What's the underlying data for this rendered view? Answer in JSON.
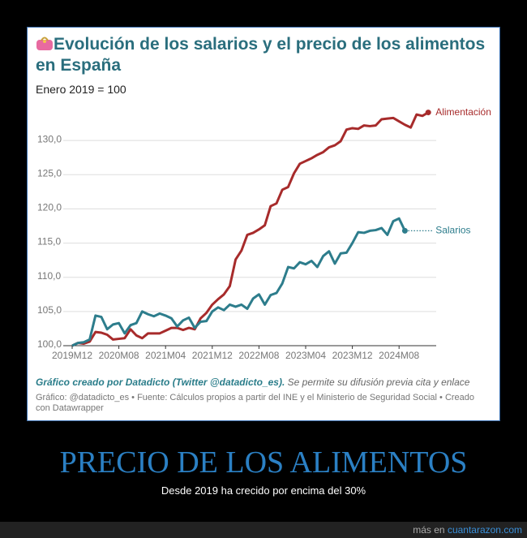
{
  "chart_data": {
    "type": "line",
    "title": "Evolución de los salarios y el precio de los alimentos en España",
    "subtitle": "Enero 2019 = 100",
    "credit_author": "Gráfico creado por Datadicto (Twitter @datadicto_es).",
    "credit_note": "Se permite su difusión previa cita y enlace",
    "source": "Gráfico: @datadicto_es • Fuente: Cálculos propios a partir del INE y el Ministerio de Seguridad Social • Creado con Datawrapper",
    "categories": [
      "2019M12",
      null,
      null,
      null,
      null,
      null,
      null,
      null,
      "2020M08",
      null,
      null,
      null,
      null,
      null,
      null,
      null,
      "2021M04",
      null,
      null,
      null,
      null,
      null,
      null,
      null,
      "2021M12",
      null,
      null,
      null,
      null,
      null,
      null,
      null,
      "2022M08",
      null,
      null,
      null,
      null,
      null,
      null,
      null,
      "2023M04",
      null,
      null,
      null,
      null,
      null,
      null,
      null,
      "2023M12",
      null,
      null,
      null,
      null,
      null,
      null,
      null,
      "2024M08",
      null,
      null,
      null,
      null,
      null
    ],
    "series": [
      {
        "name": "Alimentación",
        "color": "#a72b2b",
        "values": [
          100.0,
          100.4,
          100.3,
          100.6,
          102.0,
          101.9,
          101.6,
          100.9,
          101.0,
          101.1,
          102.4,
          101.5,
          101.1,
          101.8,
          101.8,
          101.8,
          102.2,
          102.6,
          102.6,
          102.3,
          102.6,
          102.4,
          104.0,
          104.8,
          106.0,
          106.8,
          107.5,
          108.7,
          112.6,
          113.9,
          116.2,
          116.5,
          117.0,
          117.6,
          120.4,
          120.8,
          122.8,
          123.2,
          125.2,
          126.6,
          127.0,
          127.4,
          127.9,
          128.3,
          129.0,
          129.3,
          129.9,
          131.6,
          131.8,
          131.7,
          132.2,
          132.1,
          132.2,
          133.1,
          133.2,
          133.3,
          132.8,
          132.3,
          131.9,
          133.8,
          133.6,
          134.1
        ]
      },
      {
        "name": "Salarios",
        "color": "#2d7d8c",
        "values": [
          100.0,
          100.4,
          100.5,
          100.9,
          104.4,
          104.2,
          102.4,
          103.1,
          103.3,
          101.8,
          103.0,
          103.3,
          105.0,
          104.6,
          104.3,
          104.7,
          104.4,
          104.0,
          102.8,
          103.7,
          104.1,
          102.6,
          103.5,
          103.6,
          105.0,
          105.6,
          105.2,
          106.0,
          105.7,
          106.0,
          105.4,
          106.9,
          107.5,
          106.0,
          107.4,
          107.7,
          109.1,
          111.5,
          111.3,
          112.2,
          111.9,
          112.4,
          111.5,
          113.1,
          113.8,
          112.0,
          113.5,
          113.6,
          115.0,
          116.6,
          116.5,
          116.8,
          116.9,
          117.2,
          116.2,
          118.2,
          118.6,
          116.8,
          null,
          null,
          null,
          null
        ]
      }
    ],
    "ylim": [
      100,
      135
    ],
    "yticks": [
      {
        "value": 100,
        "label": "100,0"
      },
      {
        "value": 105,
        "label": "105,0"
      },
      {
        "value": 110,
        "label": "110,0"
      },
      {
        "value": 115,
        "label": "115,0"
      },
      {
        "value": 120,
        "label": "120,0"
      },
      {
        "value": 125,
        "label": "125,0"
      },
      {
        "value": 130,
        "label": "130,0"
      }
    ],
    "grid": true
  },
  "caption": {
    "title": "PRECIO DE LOS ALIMENTOS",
    "subtitle": "Desde 2019 ha crecido por encima del 30%"
  },
  "footer": {
    "prefix": "más en",
    "link": "cuantarazon.com"
  }
}
